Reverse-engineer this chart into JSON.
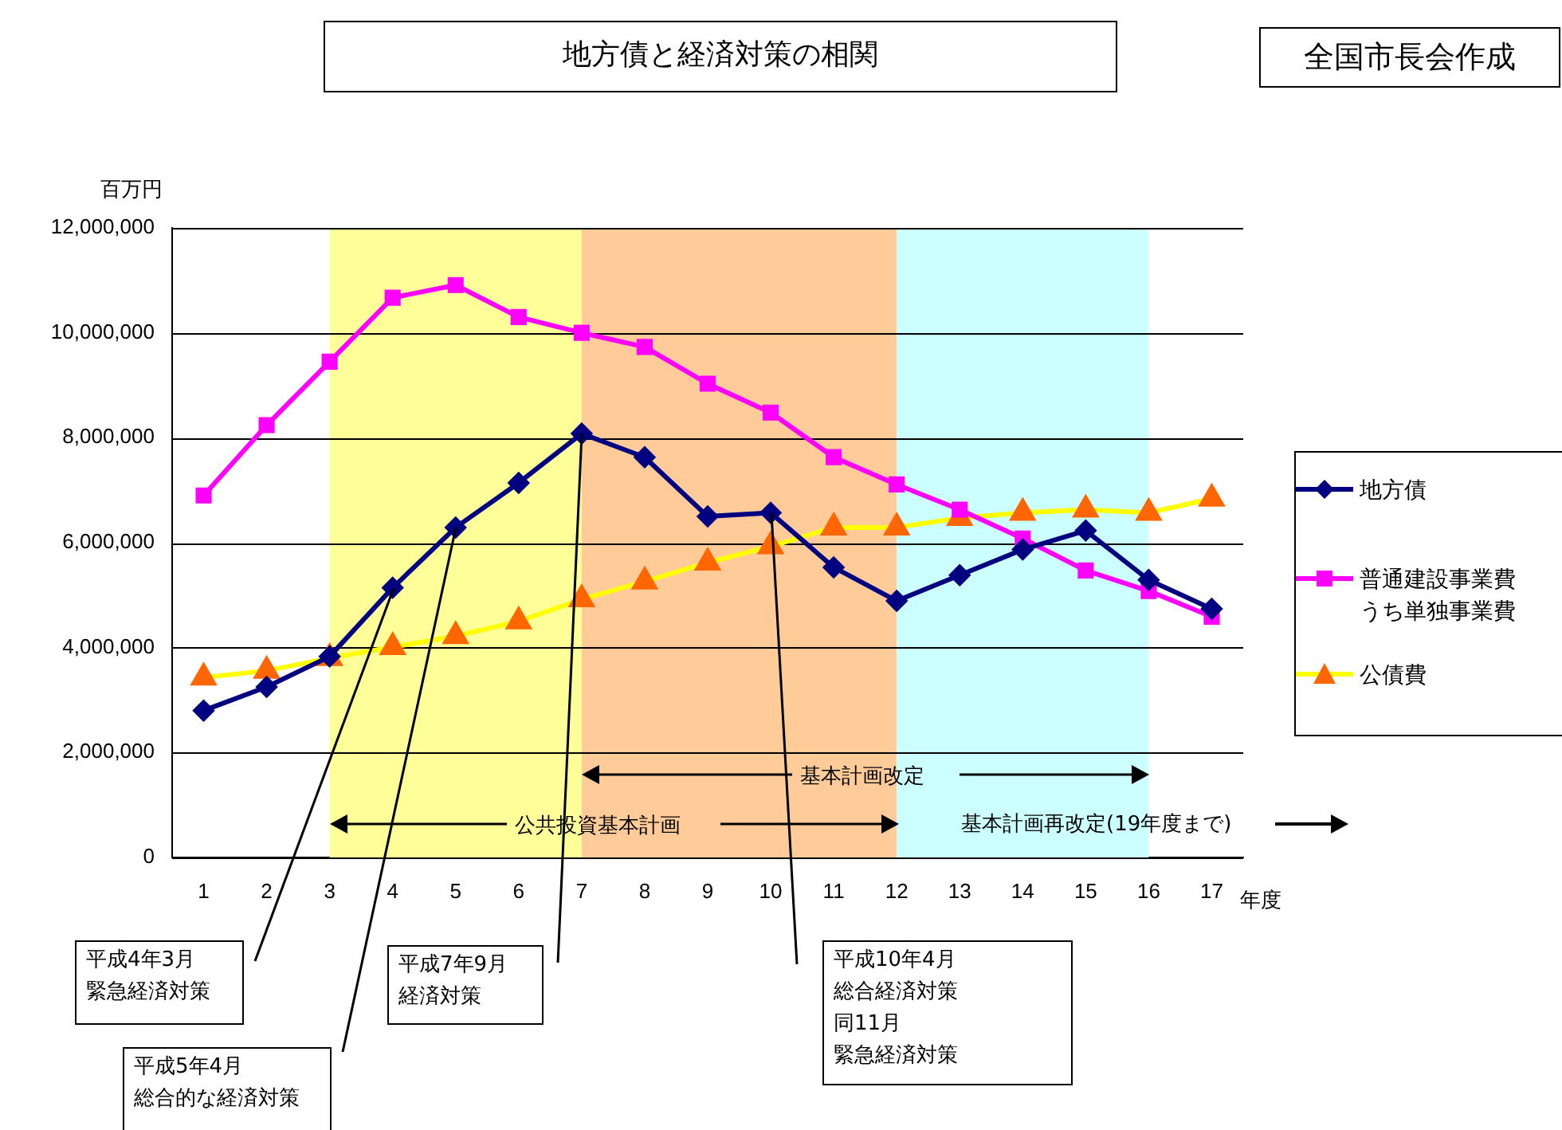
{
  "chart_data": {
    "type": "line",
    "title": "地方債と経済対策の相関",
    "ylabel": "百万円",
    "xlabel": "年度",
    "x": [
      1,
      2,
      3,
      4,
      5,
      6,
      7,
      8,
      9,
      10,
      11,
      12,
      13,
      14,
      15,
      16,
      17
    ],
    "xlim": [
      0.5,
      17.5
    ],
    "xticks": [
      1,
      2,
      3,
      4,
      5,
      6,
      7,
      8,
      9,
      10,
      11,
      12,
      13,
      14,
      15,
      16,
      17
    ],
    "ylim": [
      0,
      12000000
    ],
    "yticks": [
      0,
      {
        "value": 2000000,
        "label": "2,000,000"
      },
      {
        "value": 4000000,
        "label": "4,000,000"
      },
      {
        "value": 6000000,
        "label": "6,000,000"
      },
      {
        "value": 8000000,
        "label": "8,000,000"
      },
      {
        "value": 10000000,
        "label": "10,000,000"
      },
      {
        "value": 12000000,
        "label": "12,000,000"
      }
    ],
    "grid": "y",
    "legend": "right",
    "series": [
      {
        "name": "地方債",
        "color": "#000080",
        "marker": "diamond",
        "values": [
          2800000,
          3250000,
          3830000,
          5140000,
          6290000,
          7140000,
          8080000,
          7630000,
          6500000,
          6570000,
          5530000,
          4890000,
          5380000,
          5870000,
          6230000,
          5290000,
          4740000
        ]
      },
      {
        "name": "普通建設事業費うち単独事業費",
        "color": "#ff00ff",
        "marker": "square",
        "values": [
          6900000,
          8240000,
          9450000,
          10670000,
          10910000,
          10300000,
          10000000,
          9730000,
          9030000,
          8480000,
          7630000,
          7110000,
          6630000,
          6080000,
          5470000,
          5080000,
          4590000
        ]
      },
      {
        "name": "公債費",
        "color": "#ffff00",
        "marker": "triangle",
        "colors": [
          "#ff6600",
          "#ff6600",
          "#ff6600",
          "#ff6600",
          "#ff6600",
          "#ff6600",
          "#ff6600",
          "#ff6600",
          "#ff6600",
          "#ff6600",
          "#ff6600",
          "#ff6600",
          "#ff6600",
          "#ff6600",
          "#ff6600",
          "#ff6600",
          "#ff6600"
        ],
        "values": [
          3430000,
          3560000,
          3800000,
          4010000,
          4220000,
          4500000,
          4920000,
          5260000,
          5620000,
          5930000,
          6290000,
          6290000,
          6470000,
          6570000,
          6630000,
          6570000,
          6840000
        ]
      }
    ],
    "bands": [
      {
        "axis": "x",
        "from": 3,
        "to": 7,
        "color": "#ffff99"
      },
      {
        "axis": "x",
        "from": 7,
        "to": 12,
        "color": "#ffcc99"
      },
      {
        "axis": "x",
        "from": 12,
        "to": 16,
        "color": "#ccffff"
      }
    ],
    "annotations": [
      "全国市長会作成",
      "基本計画改定",
      "公共投資基本計画",
      "基本計画再改定(19年度まで)",
      "平成4年3月緊急経済対策",
      "平成5年4月総合的な経済対策",
      "平成7年9月経済対策",
      "平成10年4月総合経済対策同11月緊急経済対策"
    ]
  }
}
